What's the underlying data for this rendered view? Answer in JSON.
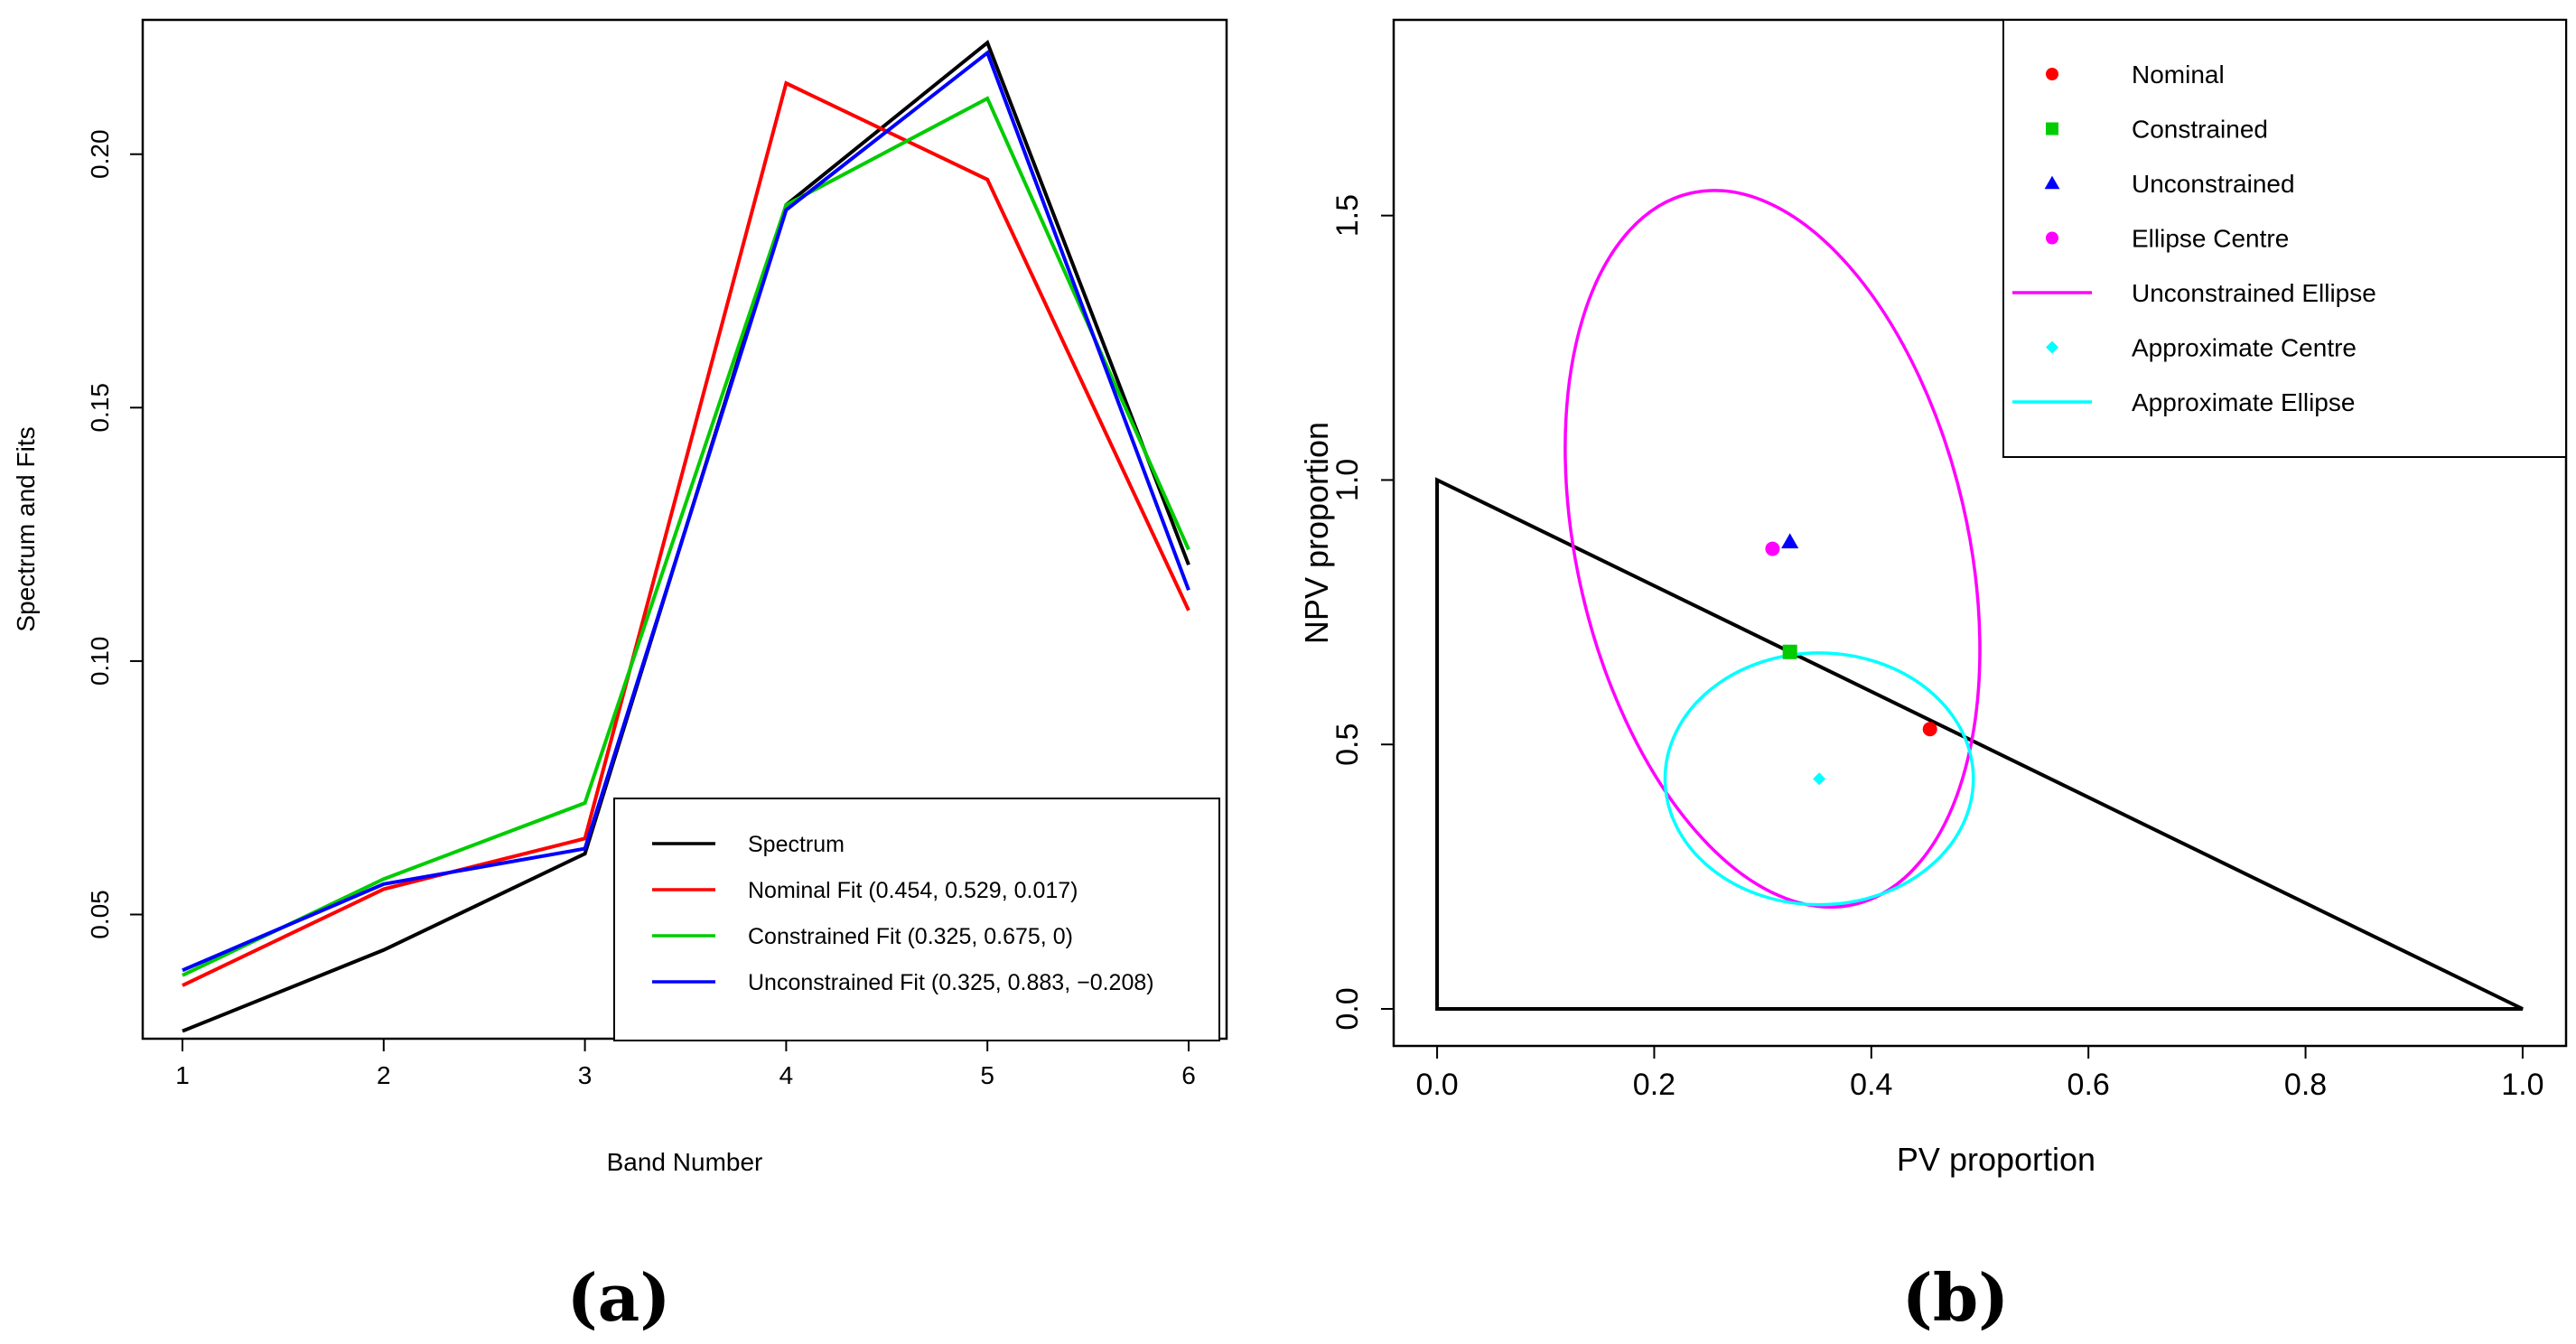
{
  "chart_data": [
    {
      "id": "a",
      "type": "line",
      "caption": "(a)",
      "caption_letter": "a",
      "xlabel": "Band Number",
      "ylabel": "Spectrum and Fits",
      "xlim": [
        1,
        6
      ],
      "ylim": [
        0.0255,
        0.2265
      ],
      "xticks": [
        1,
        2,
        3,
        4,
        5,
        6
      ],
      "xtick_labels": [
        "1",
        "2",
        "3",
        "4",
        "5",
        "6"
      ],
      "yticks": [
        0.05,
        0.1,
        0.15,
        0.2
      ],
      "ytick_labels": [
        "0.05",
        "0.10",
        "0.15",
        "0.20"
      ],
      "x": [
        1,
        2,
        3,
        4,
        5,
        6
      ],
      "series": [
        {
          "name": "Spectrum",
          "color": "#000000",
          "values": [
            0.027,
            0.043,
            0.062,
            0.19,
            0.222,
            0.119
          ]
        },
        {
          "name": "Nominal Fit (0.454, 0.529, 0.017)",
          "color": "#ff0000",
          "values": [
            0.036,
            0.055,
            0.065,
            0.214,
            0.195,
            0.11
          ]
        },
        {
          "name": "Constrained Fit (0.325, 0.675, 0)",
          "color": "#00cc00",
          "values": [
            0.038,
            0.057,
            0.072,
            0.19,
            0.211,
            0.122
          ]
        },
        {
          "name": "Unconstrained Fit (0.325, 0.883, −0.208)",
          "color": "#0000ff",
          "values": [
            0.039,
            0.056,
            0.063,
            0.189,
            0.22,
            0.114
          ]
        }
      ],
      "legend_position": "bottom-right"
    },
    {
      "id": "b",
      "type": "scatter",
      "caption": "(b)",
      "caption_letter": "b",
      "xlabel": "PV proportion",
      "ylabel": "NPV proportion",
      "xlim": [
        -0.04,
        1.04
      ],
      "ylim": [
        -0.07,
        1.87
      ],
      "xticks": [
        0.0,
        0.2,
        0.4,
        0.6,
        0.8,
        1.0
      ],
      "xtick_labels": [
        "0.0",
        "0.2",
        "0.4",
        "0.6",
        "0.8",
        "1.0"
      ],
      "yticks": [
        0.0,
        0.5,
        1.0,
        1.5
      ],
      "ytick_labels": [
        "0.0",
        "0.5",
        "1.0",
        "1.5"
      ],
      "triangle": [
        [
          0,
          0
        ],
        [
          1,
          0
        ],
        [
          0,
          1
        ]
      ],
      "points": [
        {
          "name": "Nominal",
          "x": 0.454,
          "y": 0.529,
          "shape": "circle",
          "color": "#ff0000"
        },
        {
          "name": "Constrained",
          "x": 0.325,
          "y": 0.675,
          "shape": "square",
          "color": "#00cc00"
        },
        {
          "name": "Unconstrained",
          "x": 0.325,
          "y": 0.883,
          "shape": "triangle",
          "color": "#0000ff"
        },
        {
          "name": "Ellipse Centre",
          "x": 0.309,
          "y": 0.87,
          "shape": "circle",
          "color": "#ff00ff"
        },
        {
          "name": "Approximate Centre",
          "x": 0.352,
          "y": 0.435,
          "shape": "diamond",
          "color": "#00ffff"
        }
      ],
      "ellipses": [
        {
          "name": "Unconstrained Ellipse",
          "color": "#ff00ff",
          "center": [
            0.309,
            0.87
          ],
          "semi_axes": [
            0.18,
            0.69
          ],
          "rotation_deg": -13
        },
        {
          "name": "Approximate Ellipse",
          "color": "#00ffff",
          "center": [
            0.352,
            0.435
          ],
          "semi_axes": [
            0.142,
            0.238
          ],
          "rotation_deg": 0
        }
      ],
      "legend_entries": [
        {
          "label": "Nominal",
          "kind": "circle",
          "color": "#ff0000"
        },
        {
          "label": "Constrained",
          "kind": "square",
          "color": "#00cc00"
        },
        {
          "label": "Unconstrained",
          "kind": "triangle",
          "color": "#0000ff"
        },
        {
          "label": "Ellipse Centre",
          "kind": "circle",
          "color": "#ff00ff"
        },
        {
          "label": "Unconstrained Ellipse",
          "kind": "line",
          "color": "#ff00ff"
        },
        {
          "label": "Approximate Centre",
          "kind": "diamond",
          "color": "#00ffff"
        },
        {
          "label": "Approximate Ellipse",
          "kind": "line",
          "color": "#00ffff"
        }
      ],
      "legend_position": "top-right"
    }
  ]
}
